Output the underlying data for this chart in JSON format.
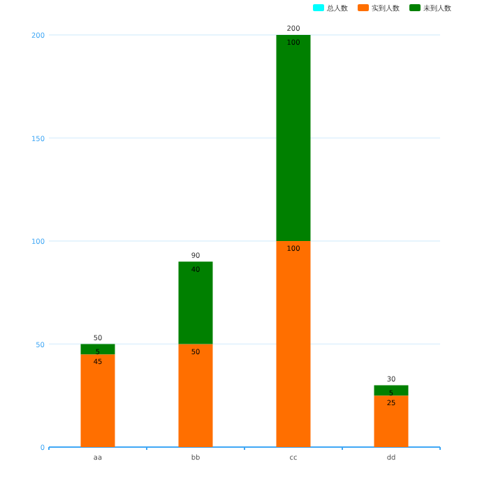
{
  "chart_data": {
    "type": "bar",
    "stacked": true,
    "categories": [
      "aa",
      "bb",
      "cc",
      "dd"
    ],
    "series": [
      {
        "name": "总人数",
        "color": "#00ffff",
        "values": [
          null,
          null,
          null,
          null
        ]
      },
      {
        "name": "实到人数",
        "color": "#ff6f00",
        "values": [
          45,
          50,
          100,
          25
        ]
      },
      {
        "name": "未到人数",
        "color": "#008000",
        "values": [
          5,
          40,
          100,
          5
        ]
      }
    ],
    "ylim": [
      0,
      200
    ],
    "yticks": [
      0,
      50,
      100,
      150,
      200
    ],
    "grid": "y",
    "legend": "top right",
    "data_labels": true,
    "totals": [
      "50",
      "90",
      "200",
      "30"
    ]
  }
}
